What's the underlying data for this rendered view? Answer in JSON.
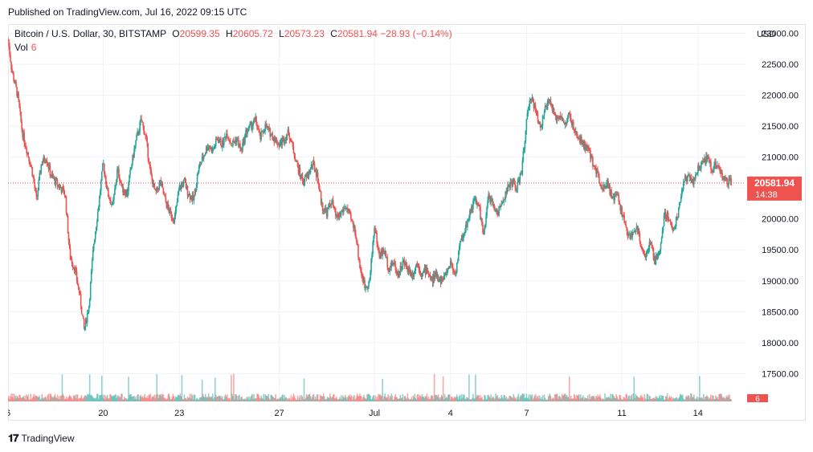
{
  "header": {
    "published": "Published on TradingView.com, Jul 16, 2022 09:15 UTC"
  },
  "legend": {
    "symbol": "Bitcoin / U.S. Dollar, 30, BITSTAMP",
    "open_label": "O",
    "open": "20599.35",
    "high_label": "H",
    "high": "20605.72",
    "low_label": "L",
    "low": "20573.23",
    "close_label": "C",
    "close": "20581.94",
    "change": "−28.93 (−0.14%)",
    "volume_label": "Vol",
    "volume": "6"
  },
  "footer": {
    "brand": "TradingView"
  },
  "colors": {
    "up": "#26a69a",
    "down": "#ef5350",
    "grid": "#f0f3fa",
    "price_line": "#ef5350"
  },
  "chart_data": {
    "type": "candlestick",
    "currency_label": "USD",
    "y_ticks": [
      17500,
      18000,
      18500,
      19000,
      19500,
      20000,
      20500,
      21000,
      21500,
      22000,
      22500,
      23000
    ],
    "ylim": [
      17050,
      23150
    ],
    "last_price": "20581.94",
    "countdown": "14:38",
    "last_volume": "6",
    "x_ticks": [
      {
        "label": "6",
        "x": 0
      },
      {
        "label": "20",
        "x": 10
      },
      {
        "label": "23",
        "x": 18
      },
      {
        "label": "27",
        "x": 28.5
      },
      {
        "label": "Jul",
        "x": 38.5
      },
      {
        "label": "4",
        "x": 46.5
      },
      {
        "label": "7",
        "x": 54.5
      },
      {
        "label": "11",
        "x": 64.5
      },
      {
        "label": "14",
        "x": 72.5
      }
    ],
    "xlim": [
      0,
      77.5
    ],
    "price_path": [
      [
        0,
        22900
      ],
      [
        0.4,
        22400
      ],
      [
        1,
        22000
      ],
      [
        1.5,
        21400
      ],
      [
        2,
        21100
      ],
      [
        2.5,
        20800
      ],
      [
        3,
        20300
      ],
      [
        3.5,
        20900
      ],
      [
        4,
        21000
      ],
      [
        4.5,
        20700
      ],
      [
        5,
        20600
      ],
      [
        5.5,
        20500
      ],
      [
        6,
        20400
      ],
      [
        6.5,
        19400
      ],
      [
        7,
        19200
      ],
      [
        7.5,
        18800
      ],
      [
        8,
        18200
      ],
      [
        8.5,
        18600
      ],
      [
        9,
        19600
      ],
      [
        9.5,
        20200
      ],
      [
        10,
        20900
      ],
      [
        10.5,
        20400
      ],
      [
        11,
        20200
      ],
      [
        11.5,
        20800
      ],
      [
        12,
        20500
      ],
      [
        12.5,
        20400
      ],
      [
        13,
        20900
      ],
      [
        13.5,
        21300
      ],
      [
        14,
        21600
      ],
      [
        14.5,
        21300
      ],
      [
        15,
        20700
      ],
      [
        15.5,
        20400
      ],
      [
        16,
        20600
      ],
      [
        16.5,
        20300
      ],
      [
        17,
        20100
      ],
      [
        17.5,
        20000
      ],
      [
        18,
        20500
      ],
      [
        18.5,
        20600
      ],
      [
        19,
        20400
      ],
      [
        19.5,
        20300
      ],
      [
        20,
        20800
      ],
      [
        20.5,
        21000
      ],
      [
        21,
        21200
      ],
      [
        21.5,
        21100
      ],
      [
        22,
        21300
      ],
      [
        22.5,
        21200
      ],
      [
        23,
        21400
      ],
      [
        23.5,
        21200
      ],
      [
        24,
        21300
      ],
      [
        24.5,
        21100
      ],
      [
        25,
        21400
      ],
      [
        25.5,
        21500
      ],
      [
        26,
        21600
      ],
      [
        26.5,
        21300
      ],
      [
        27,
        21500
      ],
      [
        27.5,
        21400
      ],
      [
        28,
        21300
      ],
      [
        28.5,
        21200
      ],
      [
        29,
        21300
      ],
      [
        29.5,
        21400
      ],
      [
        30,
        21100
      ],
      [
        30.5,
        20800
      ],
      [
        31,
        20600
      ],
      [
        31.5,
        20700
      ],
      [
        32,
        20900
      ],
      [
        32.5,
        20700
      ],
      [
        33,
        20200
      ],
      [
        33.5,
        20100
      ],
      [
        34,
        20300
      ],
      [
        34.5,
        20000
      ],
      [
        35,
        20100
      ],
      [
        35.5,
        20200
      ],
      [
        36,
        20000
      ],
      [
        36.5,
        19800
      ],
      [
        37,
        19200
      ],
      [
        37.5,
        18900
      ],
      [
        38,
        19000
      ],
      [
        38.5,
        19900
      ],
      [
        39,
        19400
      ],
      [
        39.5,
        19500
      ],
      [
        40,
        19200
      ],
      [
        40.5,
        19300
      ],
      [
        41,
        19100
      ],
      [
        41.5,
        19300
      ],
      [
        42,
        19200
      ],
      [
        42.5,
        19100
      ],
      [
        43,
        19300
      ],
      [
        43.5,
        19100
      ],
      [
        44,
        19200
      ],
      [
        44.5,
        19000
      ],
      [
        45,
        19100
      ],
      [
        45.5,
        19000
      ],
      [
        46,
        19100
      ],
      [
        46.5,
        19300
      ],
      [
        47,
        19100
      ],
      [
        47.5,
        19600
      ],
      [
        48,
        19800
      ],
      [
        48.5,
        20100
      ],
      [
        49,
        20300
      ],
      [
        49.5,
        20200
      ],
      [
        50,
        19700
      ],
      [
        50.5,
        20400
      ],
      [
        51,
        20200
      ],
      [
        51.5,
        20100
      ],
      [
        52,
        20300
      ],
      [
        52.5,
        20500
      ],
      [
        53,
        20600
      ],
      [
        53.5,
        20500
      ],
      [
        54,
        20800
      ],
      [
        54.5,
        21600
      ],
      [
        55,
        22000
      ],
      [
        55.5,
        21700
      ],
      [
        56,
        21500
      ],
      [
        56.5,
        21800
      ],
      [
        57,
        21900
      ],
      [
        57.5,
        21600
      ],
      [
        58,
        21700
      ],
      [
        58.5,
        21500
      ],
      [
        59,
        21700
      ],
      [
        59.5,
        21400
      ],
      [
        60,
        21300
      ],
      [
        60.5,
        21200
      ],
      [
        61,
        21100
      ],
      [
        61.5,
        20900
      ],
      [
        62,
        20700
      ],
      [
        62.5,
        20500
      ],
      [
        63,
        20600
      ],
      [
        63.5,
        20300
      ],
      [
        64,
        20400
      ],
      [
        64.5,
        20100
      ],
      [
        65,
        19800
      ],
      [
        65.5,
        19700
      ],
      [
        66,
        19900
      ],
      [
        66.5,
        19600
      ],
      [
        67,
        19400
      ],
      [
        67.5,
        19600
      ],
      [
        68,
        19300
      ],
      [
        68.5,
        19500
      ],
      [
        69,
        20100
      ],
      [
        69.5,
        20000
      ],
      [
        70,
        19800
      ],
      [
        70.5,
        20200
      ],
      [
        71,
        20600
      ],
      [
        71.5,
        20700
      ],
      [
        72,
        20600
      ],
      [
        72.5,
        20800
      ],
      [
        73,
        20900
      ],
      [
        73.5,
        21000
      ],
      [
        74,
        20800
      ],
      [
        74.5,
        20900
      ],
      [
        75,
        20700
      ],
      [
        75.5,
        20600
      ],
      [
        76,
        20581.94
      ]
    ]
  }
}
